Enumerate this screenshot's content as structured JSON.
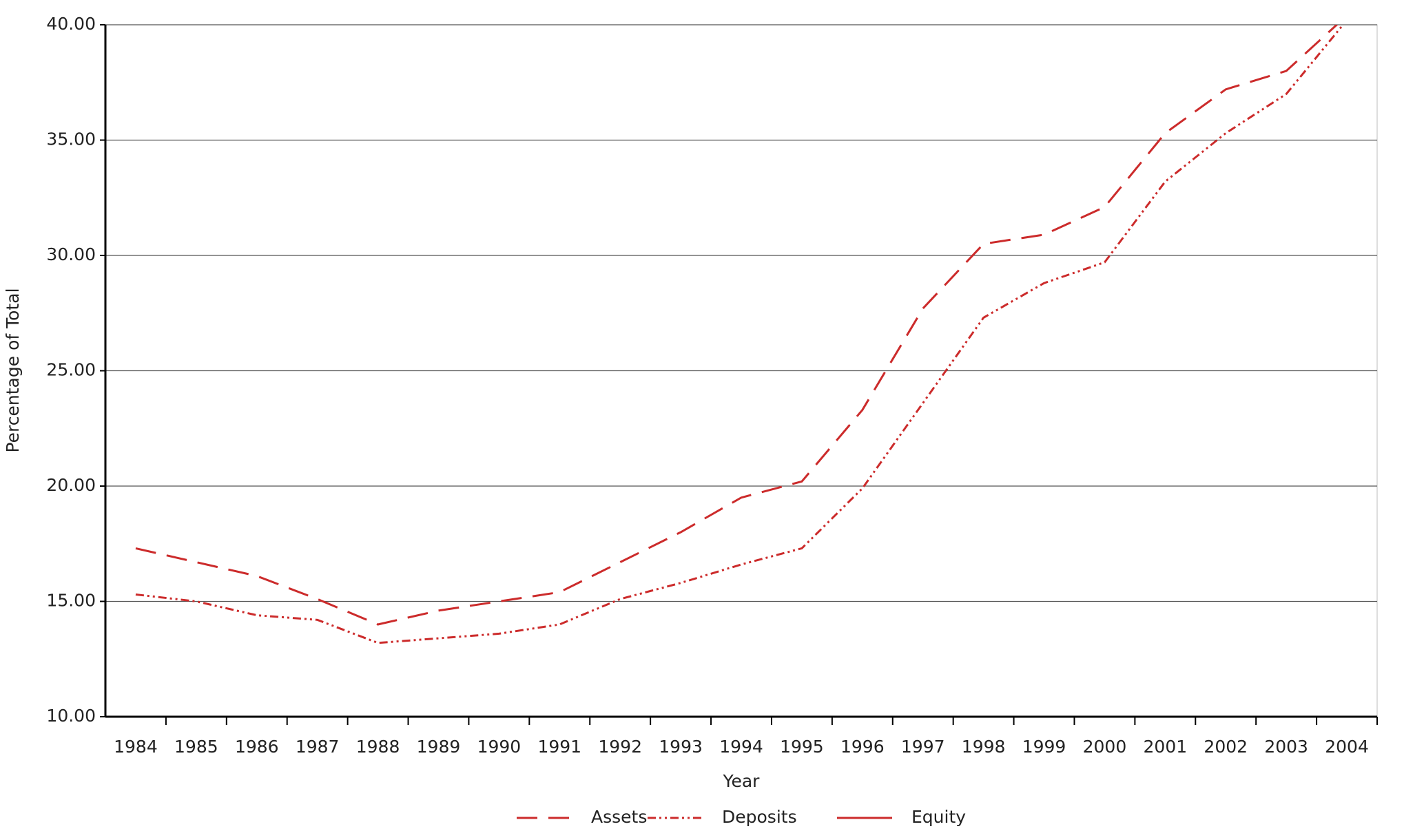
{
  "chart_data": {
    "type": "line",
    "x_label": "Year",
    "y_label": "Percentage of Total",
    "categories": [
      "1984",
      "1985",
      "1986",
      "1987",
      "1988",
      "1989",
      "1990",
      "1991",
      "1992",
      "1993",
      "1994",
      "1995",
      "1996",
      "1997",
      "1998",
      "1999",
      "2000",
      "2001",
      "2002",
      "2003",
      "2004"
    ],
    "series": [
      {
        "name": "Assets",
        "color": "#cc2b2b",
        "style": "dashed",
        "values": [
          17.3,
          16.7,
          16.1,
          15.1,
          14.0,
          14.6,
          15.0,
          15.4,
          16.7,
          18.0,
          19.5,
          20.2,
          23.3,
          27.7,
          30.5,
          30.9,
          32.1,
          35.3,
          37.2,
          38.0,
          40.4
        ]
      },
      {
        "name": "Deposits",
        "color": "#cc2b2b",
        "style": "dash-dot-dot",
        "values": [
          15.3,
          15.0,
          14.4,
          14.2,
          13.2,
          13.4,
          13.6,
          14.0,
          15.1,
          15.8,
          16.6,
          17.3,
          19.9,
          23.6,
          27.3,
          28.8,
          29.7,
          33.2,
          35.3,
          37.0,
          40.2
        ]
      },
      {
        "name": "Equity",
        "color": "#cc2b2b",
        "style": "solid",
        "values": [
          null,
          null,
          null,
          null,
          null,
          null,
          null,
          null,
          null,
          null,
          null,
          null,
          null,
          null,
          null,
          null,
          null,
          null,
          null,
          null,
          null
        ]
      }
    ],
    "ylim": [
      10,
      40
    ],
    "yticks": [
      {
        "value": 10,
        "label": "10.00"
      },
      {
        "value": 15,
        "label": "15.00"
      },
      {
        "value": 20,
        "label": "20.00"
      },
      {
        "value": 25,
        "label": "25.00"
      },
      {
        "value": 30,
        "label": "30.00"
      },
      {
        "value": 35,
        "label": "35.00"
      },
      {
        "value": 40,
        "label": "40.00"
      }
    ],
    "grid": true,
    "legend": "bottom"
  }
}
